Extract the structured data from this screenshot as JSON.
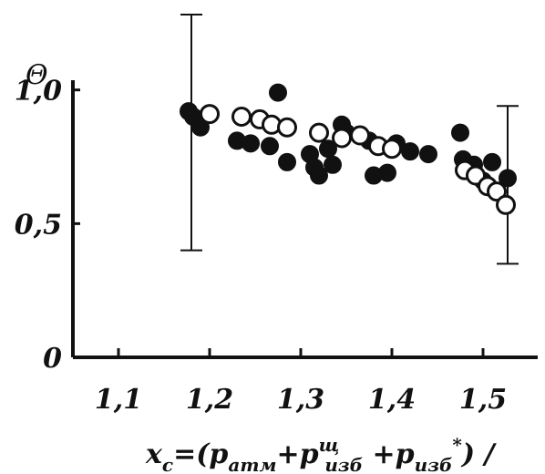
{
  "chart_data": {
    "type": "scatter",
    "title": "",
    "ylabel": "Θ",
    "xlabel": {
      "text_prefix": "x",
      "text_prefix_sub": "с",
      "text_rest": "=(p",
      "p1_sub": "атм",
      "plus1": "+p",
      "p2_sup": "щ",
      "p2_sub": "изб",
      "plus2": " +p",
      "p3_sub": "изб",
      "p3_sup": "*",
      "tail": ") /"
    },
    "xlim": [
      1.05,
      1.56
    ],
    "ylim": [
      0,
      1.2
    ],
    "x_ticks": [
      {
        "value": 1.1,
        "label": "1,1"
      },
      {
        "value": 1.2,
        "label": "1,2"
      },
      {
        "value": 1.3,
        "label": "1,3"
      },
      {
        "value": 1.4,
        "label": "1,4"
      },
      {
        "value": 1.5,
        "label": "1,5"
      }
    ],
    "y_ticks": [
      {
        "value": 0,
        "label": "0"
      },
      {
        "value": 0.5,
        "label": "0,5"
      },
      {
        "value": 1.0,
        "label": "1,0"
      }
    ],
    "series": [
      {
        "marker": "filled",
        "color": "#111111",
        "points": [
          [
            1.177,
            0.92
          ],
          [
            1.182,
            0.9
          ],
          [
            1.19,
            0.86
          ],
          [
            1.23,
            0.81
          ],
          [
            1.245,
            0.8
          ],
          [
            1.266,
            0.79
          ],
          [
            1.275,
            0.99
          ],
          [
            1.285,
            0.73
          ],
          [
            1.31,
            0.76
          ],
          [
            1.315,
            0.71
          ],
          [
            1.32,
            0.68
          ],
          [
            1.33,
            0.78
          ],
          [
            1.335,
            0.72
          ],
          [
            1.345,
            0.87
          ],
          [
            1.35,
            0.84
          ],
          [
            1.375,
            0.81
          ],
          [
            1.38,
            0.68
          ],
          [
            1.395,
            0.69
          ],
          [
            1.405,
            0.8
          ],
          [
            1.42,
            0.77
          ],
          [
            1.44,
            0.76
          ],
          [
            1.475,
            0.84
          ],
          [
            1.478,
            0.74
          ],
          [
            1.49,
            0.72
          ],
          [
            1.5,
            0.66
          ],
          [
            1.51,
            0.73
          ],
          [
            1.527,
            0.67
          ]
        ]
      },
      {
        "marker": "open",
        "color": "#111111",
        "points": [
          [
            1.2,
            0.91
          ],
          [
            1.235,
            0.9
          ],
          [
            1.255,
            0.89
          ],
          [
            1.268,
            0.87
          ],
          [
            1.285,
            0.86
          ],
          [
            1.32,
            0.84
          ],
          [
            1.345,
            0.82
          ],
          [
            1.365,
            0.83
          ],
          [
            1.385,
            0.79
          ],
          [
            1.4,
            0.78
          ],
          [
            1.48,
            0.7
          ],
          [
            1.492,
            0.68
          ],
          [
            1.505,
            0.64
          ],
          [
            1.515,
            0.62
          ],
          [
            1.525,
            0.57
          ]
        ]
      }
    ],
    "error_bars": [
      {
        "x": 1.18,
        "y_low": 0.4,
        "y_high": 1.38
      },
      {
        "x": 1.527,
        "y_low": 0.35,
        "y_high": 0.94
      }
    ]
  }
}
